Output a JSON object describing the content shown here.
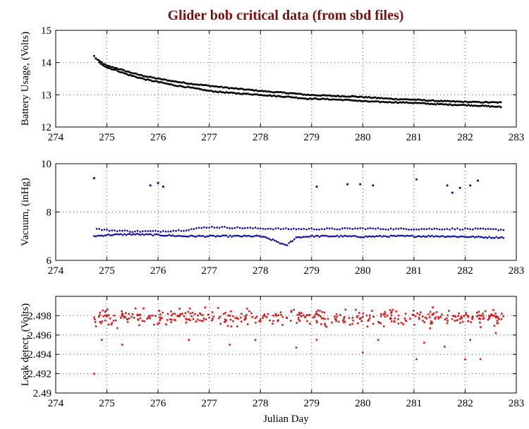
{
  "title": "Glider bob critical data (from sbd files)",
  "colors": {
    "title": "#7a1010",
    "battery": "#000000",
    "vacuum": "#0a0aa8",
    "leak": "#d21f1f",
    "axes": "#000000",
    "grid": "#555555"
  },
  "chart_data": [
    {
      "type": "scatter",
      "name": "battery",
      "title": "Glider bob critical data (from sbd files)",
      "xlabel": "",
      "ylabel": "Battery Usage, (Volts)",
      "xlim": [
        274,
        283
      ],
      "ylim": [
        12,
        15
      ],
      "xticks": [
        274,
        275,
        276,
        277,
        278,
        279,
        280,
        281,
        282,
        283
      ],
      "yticks": [
        12,
        13,
        14,
        15
      ],
      "yticklabels": [
        "12",
        "13",
        "14",
        "15"
      ],
      "grid": true,
      "color": "#000000",
      "series": [
        {
          "name": "upper",
          "x": [
            274.75,
            274.8,
            274.9,
            275.0,
            275.2,
            275.4,
            275.6,
            275.8,
            276.0,
            276.3,
            276.6,
            277.0,
            277.4,
            277.8,
            278.0,
            278.3,
            278.6,
            278.9,
            279.2,
            279.5,
            279.8,
            280.0,
            280.3,
            280.6,
            281.0,
            281.3,
            281.6,
            282.0,
            282.3,
            282.7
          ],
          "y": [
            14.2,
            14.1,
            14.0,
            13.9,
            13.82,
            13.72,
            13.63,
            13.56,
            13.5,
            13.42,
            13.35,
            13.28,
            13.21,
            13.15,
            13.12,
            13.08,
            13.05,
            13.0,
            12.98,
            12.96,
            12.95,
            12.93,
            12.9,
            12.87,
            12.85,
            12.82,
            12.8,
            12.78,
            12.77,
            12.76
          ]
        },
        {
          "name": "lower",
          "x": [
            274.85,
            275.0,
            275.2,
            275.4,
            275.6,
            275.8,
            276.0,
            276.3,
            276.6,
            277.0,
            277.4,
            277.8,
            278.0,
            278.3,
            278.6,
            278.9,
            279.2,
            279.5,
            279.8,
            280.0,
            280.3,
            280.6,
            281.0,
            281.3,
            281.6,
            282.0,
            282.3,
            282.7
          ],
          "y": [
            14.0,
            13.85,
            13.75,
            13.63,
            13.54,
            13.46,
            13.4,
            13.3,
            13.23,
            13.12,
            13.06,
            13.02,
            13.0,
            12.96,
            12.93,
            12.88,
            12.87,
            12.85,
            12.83,
            12.8,
            12.78,
            12.77,
            12.75,
            12.72,
            12.7,
            12.68,
            12.66,
            12.62
          ]
        }
      ]
    },
    {
      "type": "scatter",
      "name": "vacuum",
      "xlabel": "",
      "ylabel": "Vacuum, (inHg)",
      "xlim": [
        274,
        283
      ],
      "ylim": [
        6,
        10
      ],
      "xticks": [
        274,
        275,
        276,
        277,
        278,
        279,
        280,
        281,
        282,
        283
      ],
      "yticks": [
        6,
        8,
        10
      ],
      "yticklabels": [
        "6",
        "8",
        "10"
      ],
      "grid": true,
      "color": "#0a0aa8",
      "series": [
        {
          "name": "lower-band",
          "x": [
            274.75,
            275.0,
            275.5,
            276.0,
            276.5,
            277.0,
            277.5,
            278.0,
            278.3,
            278.5,
            278.7,
            279.0,
            279.5,
            280.0,
            280.5,
            281.0,
            281.5,
            282.0,
            282.5,
            282.75
          ],
          "y": [
            7.0,
            7.05,
            7.08,
            7.05,
            7.0,
            7.0,
            7.0,
            7.0,
            6.8,
            6.6,
            6.95,
            7.0,
            7.0,
            6.98,
            7.0,
            7.0,
            7.0,
            6.98,
            6.95,
            6.95
          ]
        },
        {
          "name": "upper-band",
          "x": [
            274.8,
            275.0,
            275.5,
            276.0,
            276.5,
            277.0,
            277.5,
            278.0,
            278.5,
            279.0,
            279.5,
            280.0,
            280.5,
            281.0,
            281.5,
            282.0,
            282.5,
            282.75
          ],
          "y": [
            7.3,
            7.25,
            7.2,
            7.2,
            7.25,
            7.38,
            7.35,
            7.32,
            7.3,
            7.3,
            7.3,
            7.32,
            7.3,
            7.3,
            7.3,
            7.3,
            7.28,
            7.27
          ]
        },
        {
          "name": "outliers",
          "x": [
            274.75,
            275.85,
            276.0,
            276.1,
            279.1,
            279.7,
            279.95,
            280.2,
            281.05,
            281.65,
            281.75,
            281.9,
            282.1,
            282.25
          ],
          "y": [
            9.4,
            9.1,
            9.2,
            9.05,
            9.05,
            9.15,
            9.15,
            9.1,
            9.35,
            9.1,
            8.8,
            9.0,
            9.1,
            9.3
          ]
        }
      ]
    },
    {
      "type": "scatter",
      "name": "leak",
      "xlabel": "Julian Day",
      "ylabel": "Leak detect, (Volts)",
      "xlim": [
        274,
        283
      ],
      "ylim": [
        2.49,
        2.5
      ],
      "xticks": [
        274,
        275,
        276,
        277,
        278,
        279,
        280,
        281,
        282,
        283
      ],
      "yticks": [
        2.49,
        2.492,
        2.494,
        2.496,
        2.498
      ],
      "yticklabels": [
        "2.49",
        "2.492",
        "2.494",
        "2.496",
        "2.498"
      ],
      "grid": true,
      "color": "#d21f1f",
      "range": {
        "x": [
          274.75,
          282.75
        ],
        "y_center": 2.4978,
        "y_spread": 0.0012
      },
      "outliers": {
        "x": [
          274.75,
          274.9,
          275.3,
          276.6,
          277.4,
          277.9,
          278.7,
          279.1,
          280.0,
          280.3,
          281.05,
          281.2,
          281.6,
          282.0,
          282.1,
          282.3,
          282.6
        ],
        "y": [
          2.492,
          2.4955,
          2.495,
          2.4955,
          2.495,
          2.4955,
          2.4947,
          2.4955,
          2.4942,
          2.4955,
          2.4935,
          2.4952,
          2.4948,
          2.4935,
          2.4955,
          2.4935,
          2.4962
        ]
      }
    }
  ]
}
